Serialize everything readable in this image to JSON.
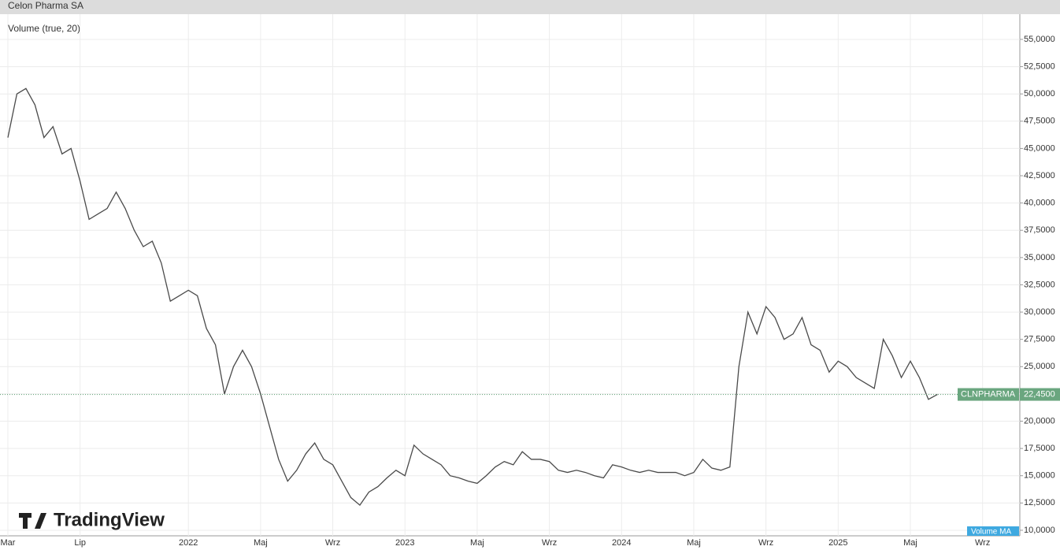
{
  "chart_data": {
    "type": "line",
    "title": "Celon Pharma SA",
    "indicator": "Volume (true, 20)",
    "indicator_ma": "Volume MA",
    "brand": "TradingView",
    "symbol": "CLNPHARMA",
    "last_price": {
      "value": 22.45,
      "label": "22,4500"
    },
    "categories": [
      "Mar",
      null,
      null,
      null,
      null,
      null,
      null,
      null,
      "Lip",
      null,
      null,
      null,
      null,
      null,
      null,
      null,
      null,
      null,
      null,
      null,
      "2022",
      null,
      null,
      null,
      null,
      null,
      null,
      null,
      "Maj",
      null,
      null,
      null,
      null,
      null,
      null,
      null,
      "Wrz",
      null,
      null,
      null,
      null,
      null,
      null,
      null,
      "2023",
      null,
      null,
      null,
      null,
      null,
      null,
      null,
      "Maj",
      null,
      null,
      null,
      null,
      null,
      null,
      null,
      "Wrz",
      null,
      null,
      null,
      null,
      null,
      null,
      null,
      "2024",
      null,
      null,
      null,
      null,
      null,
      null,
      null,
      "Maj",
      null,
      null,
      null,
      null,
      null,
      null,
      null,
      "Wrz",
      null,
      null,
      null,
      null,
      null,
      null,
      null,
      "2025",
      null,
      null,
      null,
      null,
      null,
      null,
      null,
      "Maj",
      null,
      null,
      null,
      null,
      null,
      null,
      null,
      "Wrz",
      null,
      null,
      null
    ],
    "series": [
      {
        "name": "CLNPHARMA",
        "color": "#4a4a4a",
        "values": [
          46,
          50,
          50.5,
          49,
          46,
          47,
          44.5,
          45,
          42,
          38.5,
          39,
          39.5,
          41,
          39.5,
          37.5,
          36,
          36.5,
          34.5,
          31,
          31.5,
          32,
          31.5,
          28.5,
          27,
          22.5,
          25,
          26.5,
          25,
          22.5,
          19.5,
          16.5,
          14.5,
          15.5,
          17,
          18,
          16.5,
          16,
          14.5,
          13,
          12.3,
          13.5,
          14,
          14.8,
          15.5,
          15,
          17.8,
          17,
          16.5,
          16,
          15,
          14.8,
          14.5,
          14.3,
          15,
          15.8,
          16.3,
          16,
          17.2,
          16.5,
          16.5,
          16.3,
          15.5,
          15.3,
          15.5,
          15.3,
          15,
          14.8,
          16,
          15.8,
          15.5,
          15.3,
          15.5,
          15.3,
          15.3,
          15.3,
          15,
          15.3,
          16.5,
          15.7,
          15.5,
          15.8,
          25,
          30,
          28,
          30.5,
          29.5,
          27.5,
          28,
          29.5,
          27,
          26.5,
          24.5,
          25.5,
          25,
          24,
          23.5,
          23,
          27.5,
          26,
          24,
          25.5,
          24,
          22,
          22.45,
          null,
          null,
          null,
          null,
          null,
          null,
          null,
          null
        ]
      }
    ],
    "ylim": [
      9.49,
      57.31
    ],
    "yticks": [
      {
        "value": 10,
        "label": "10,0000"
      },
      {
        "value": 12.5,
        "label": "12,5000"
      },
      {
        "value": 15,
        "label": "15,0000"
      },
      {
        "value": 17.5,
        "label": "17,5000"
      },
      {
        "value": 20,
        "label": "20,0000"
      },
      {
        "value": 22.5,
        "label": "22,5000"
      },
      {
        "value": 25,
        "label": "25,0000"
      },
      {
        "value": 27.5,
        "label": "27,5000"
      },
      {
        "value": 30,
        "label": "30,0000"
      },
      {
        "value": 32.5,
        "label": "32,5000"
      },
      {
        "value": 35,
        "label": "35,0000"
      },
      {
        "value": 37.5,
        "label": "37,5000"
      },
      {
        "value": 40,
        "label": "40,0000"
      },
      {
        "value": 42.5,
        "label": "42,5000"
      },
      {
        "value": 45,
        "label": "45,0000"
      },
      {
        "value": 47.5,
        "label": "47,5000"
      },
      {
        "value": 50,
        "label": "50,0000"
      },
      {
        "value": 52.5,
        "label": "52,5000"
      },
      {
        "value": 55,
        "label": "55,0000"
      }
    ],
    "grid": true
  }
}
